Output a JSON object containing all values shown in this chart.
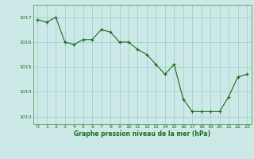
{
  "x": [
    0,
    1,
    2,
    3,
    4,
    5,
    6,
    7,
    8,
    9,
    10,
    11,
    12,
    13,
    14,
    15,
    16,
    17,
    18,
    19,
    20,
    21,
    22,
    23
  ],
  "y": [
    1016.9,
    1016.8,
    1017.0,
    1016.0,
    1015.9,
    1016.1,
    1016.1,
    1016.5,
    1016.4,
    1016.0,
    1016.0,
    1015.7,
    1015.5,
    1015.1,
    1014.7,
    1015.1,
    1013.7,
    1013.2,
    1013.2,
    1013.2,
    1013.2,
    1013.8,
    1014.6,
    1014.7
  ],
  "bg_color": "#cce9e8",
  "line_color": "#1a6b1a",
  "marker_color": "#1a6b1a",
  "grid_color": "#99cccc",
  "xlabel": "Graphe pression niveau de la mer (hPa)",
  "xlabel_color": "#1a6b1a",
  "tick_label_color": "#1a6b1a",
  "ylim": [
    1012.7,
    1017.5
  ],
  "yticks": [
    1013,
    1014,
    1015,
    1016,
    1017
  ],
  "xticks": [
    0,
    1,
    2,
    3,
    4,
    5,
    6,
    7,
    8,
    9,
    10,
    11,
    12,
    13,
    14,
    15,
    16,
    17,
    18,
    19,
    20,
    21,
    22,
    23
  ],
  "figure_bg": "#cce9e8"
}
